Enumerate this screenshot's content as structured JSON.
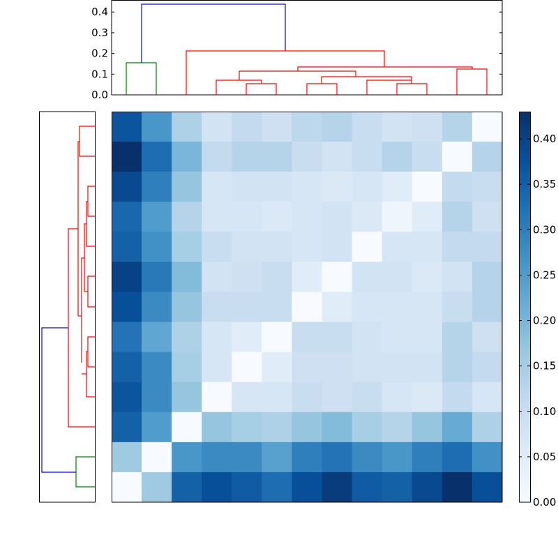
{
  "chart_data": {
    "type": "heatmap",
    "title": "",
    "description": "Clustered distance matrix heatmap with row and column dendrograms and colorbar",
    "rows": 13,
    "cols": 13,
    "colormap": "Blues",
    "values": [
      [
        0.37,
        0.26,
        0.14,
        0.08,
        0.11,
        0.09,
        0.12,
        0.13,
        0.1,
        0.08,
        0.09,
        0.13,
        0.0
      ],
      [
        0.43,
        0.33,
        0.2,
        0.11,
        0.13,
        0.13,
        0.1,
        0.08,
        0.1,
        0.13,
        0.1,
        0.0,
        0.13
      ],
      [
        0.39,
        0.3,
        0.17,
        0.07,
        0.08,
        0.08,
        0.07,
        0.06,
        0.07,
        0.05,
        0.0,
        0.11,
        0.1
      ],
      [
        0.34,
        0.25,
        0.13,
        0.07,
        0.07,
        0.06,
        0.07,
        0.08,
        0.06,
        0.02,
        0.05,
        0.13,
        0.09
      ],
      [
        0.35,
        0.27,
        0.15,
        0.1,
        0.08,
        0.08,
        0.07,
        0.08,
        0.0,
        0.07,
        0.07,
        0.11,
        0.11
      ],
      [
        0.4,
        0.31,
        0.19,
        0.08,
        0.09,
        0.1,
        0.05,
        0.0,
        0.08,
        0.08,
        0.06,
        0.08,
        0.13
      ],
      [
        0.38,
        0.28,
        0.17,
        0.1,
        0.1,
        0.1,
        0.0,
        0.05,
        0.07,
        0.07,
        0.07,
        0.1,
        0.13
      ],
      [
        0.32,
        0.23,
        0.14,
        0.07,
        0.05,
        0.0,
        0.1,
        0.1,
        0.08,
        0.07,
        0.07,
        0.13,
        0.09
      ],
      [
        0.35,
        0.28,
        0.15,
        0.07,
        0.0,
        0.05,
        0.09,
        0.09,
        0.08,
        0.08,
        0.08,
        0.13,
        0.11
      ],
      [
        0.37,
        0.28,
        0.17,
        0.0,
        0.07,
        0.07,
        0.1,
        0.09,
        0.1,
        0.07,
        0.06,
        0.11,
        0.07
      ],
      [
        0.35,
        0.25,
        0.0,
        0.17,
        0.15,
        0.14,
        0.17,
        0.19,
        0.15,
        0.13,
        0.17,
        0.22,
        0.14
      ],
      [
        0.16,
        0.0,
        0.26,
        0.28,
        0.28,
        0.24,
        0.3,
        0.32,
        0.28,
        0.26,
        0.3,
        0.33,
        0.27
      ],
      [
        0.0,
        0.16,
        0.35,
        0.38,
        0.36,
        0.33,
        0.38,
        0.41,
        0.36,
        0.35,
        0.39,
        0.43,
        0.38
      ]
    ],
    "colorbar": {
      "vmin": 0.0,
      "vmax": 0.43,
      "ticks": [
        "0.00",
        "0.05",
        "0.10",
        "0.15",
        "0.20",
        "0.25",
        "0.30",
        "0.35",
        "0.40"
      ]
    },
    "top_dendrogram": {
      "ylim": [
        0.0,
        0.46
      ],
      "ticks": [
        "0.0",
        "0.1",
        "0.2",
        "0.3",
        "0.4"
      ],
      "cluster_colors": [
        "#008000",
        "#ff0000",
        "#0000ff"
      ],
      "merge_heights_approx": [
        0.44,
        0.21,
        0.155,
        0.135,
        0.125,
        0.11,
        0.09,
        0.07,
        0.07,
        0.055,
        0.055,
        0.055
      ]
    },
    "left_dendrogram": {
      "orientation": "left",
      "cluster_colors": [
        "#008000",
        "#ff0000",
        "#0000ff"
      ]
    },
    "xlabel": "",
    "ylabel": "",
    "grid": false
  },
  "colors": {
    "cluster_green": "#008000",
    "cluster_red": "#ff0000",
    "link_blue": "#0000ff",
    "axis": "#000000"
  }
}
